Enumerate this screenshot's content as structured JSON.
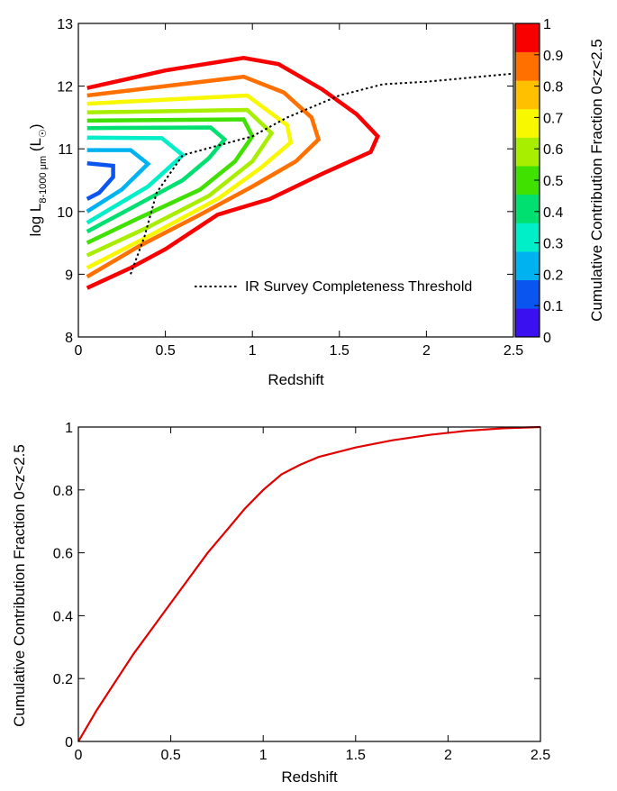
{
  "chart_data": [
    {
      "type": "contour",
      "xlabel": "Redshift",
      "ylabel": {
        "main": "log L",
        "subscript": "8-1000 μm",
        "unit_open": " (L",
        "unit_sub": "☉",
        "unit_close": ")"
      },
      "xlim": [
        0,
        2.5
      ],
      "ylim": [
        8,
        13
      ],
      "xticks": [
        "0",
        "0.5",
        "1",
        "1.5",
        "2",
        "2.5"
      ],
      "yticks": [
        "8",
        "9",
        "10",
        "11",
        "12",
        "13"
      ],
      "colorbar": {
        "label": "Cumulative Contribution Fraction 0<z<2.5",
        "levels": [
          0,
          0.1,
          0.2,
          0.3,
          0.4,
          0.5,
          0.6,
          0.7,
          0.8,
          0.9,
          1
        ],
        "tick_labels": [
          "0",
          "0.1",
          "0.2",
          "0.3",
          "0.4",
          "0.5",
          "0.6",
          "0.7",
          "0.8",
          "0.9",
          "1"
        ],
        "colors": [
          "#3a10f0",
          "#0a55f0",
          "#00b3f0",
          "#00eec8",
          "#00e070",
          "#40e000",
          "#a8ee00",
          "#f8f800",
          "#ffc000",
          "#ff7000",
          "#f80000"
        ]
      },
      "contours": [
        {
          "level": 0.2,
          "color": "#0a55f0",
          "points": [
            [
              0.05,
              10.77
            ],
            [
              0.2,
              10.73
            ],
            [
              0.2,
              10.55
            ],
            [
              0.12,
              10.3
            ],
            [
              0.05,
              10.2
            ]
          ]
        },
        {
          "level": 0.3,
          "color": "#00b3f0",
          "points": [
            [
              0.05,
              10.98
            ],
            [
              0.3,
              10.98
            ],
            [
              0.4,
              10.76
            ],
            [
              0.25,
              10.35
            ],
            [
              0.05,
              10.0
            ]
          ]
        },
        {
          "level": 0.4,
          "color": "#00eec8",
          "points": [
            [
              0.05,
              11.18
            ],
            [
              0.48,
              11.17
            ],
            [
              0.6,
              10.9
            ],
            [
              0.4,
              10.4
            ],
            [
              0.05,
              9.82
            ]
          ]
        },
        {
          "level": 0.5,
          "color": "#00e070",
          "points": [
            [
              0.05,
              11.33
            ],
            [
              0.76,
              11.34
            ],
            [
              0.84,
              11.15
            ],
            [
              0.75,
              10.85
            ],
            [
              0.6,
              10.5
            ],
            [
              0.3,
              10.05
            ],
            [
              0.05,
              9.68
            ]
          ]
        },
        {
          "level": 0.6,
          "color": "#40e000",
          "points": [
            [
              0.05,
              11.45
            ],
            [
              0.95,
              11.47
            ],
            [
              1.0,
              11.2
            ],
            [
              0.9,
              10.8
            ],
            [
              0.7,
              10.35
            ],
            [
              0.35,
              9.9
            ],
            [
              0.05,
              9.5
            ]
          ]
        },
        {
          "level": 0.7,
          "color": "#a8ee00",
          "points": [
            [
              0.05,
              11.58
            ],
            [
              0.97,
              11.62
            ],
            [
              1.11,
              11.25
            ],
            [
              1.0,
              10.8
            ],
            [
              0.75,
              10.25
            ],
            [
              0.4,
              9.75
            ],
            [
              0.05,
              9.3
            ]
          ]
        },
        {
          "level": 0.8,
          "color": "#f8f800",
          "points": [
            [
              0.05,
              11.72
            ],
            [
              0.97,
              11.85
            ],
            [
              1.2,
              11.38
            ],
            [
              1.22,
              11.1
            ],
            [
              1.05,
              10.7
            ],
            [
              0.8,
              10.2
            ],
            [
              0.4,
              9.6
            ],
            [
              0.05,
              9.1
            ]
          ]
        },
        {
          "level": 0.9,
          "color": "#ff7000",
          "points": [
            [
              0.05,
              11.85
            ],
            [
              0.5,
              12.0
            ],
            [
              0.95,
              12.15
            ],
            [
              1.18,
              11.9
            ],
            [
              1.34,
              11.5
            ],
            [
              1.38,
              11.15
            ],
            [
              1.25,
              10.8
            ],
            [
              1.0,
              10.4
            ],
            [
              0.7,
              9.95
            ],
            [
              0.35,
              9.45
            ],
            [
              0.05,
              8.96
            ]
          ]
        },
        {
          "level": 1.0,
          "color": "#f80000",
          "points": [
            [
              0.05,
              11.97
            ],
            [
              0.5,
              12.25
            ],
            [
              0.95,
              12.45
            ],
            [
              1.15,
              12.35
            ],
            [
              1.4,
              11.95
            ],
            [
              1.6,
              11.55
            ],
            [
              1.72,
              11.2
            ],
            [
              1.68,
              10.95
            ],
            [
              1.4,
              10.6
            ],
            [
              1.1,
              10.2
            ],
            [
              0.8,
              9.95
            ],
            [
              0.5,
              9.4
            ],
            [
              0.3,
              9.1
            ],
            [
              0.05,
              8.78
            ]
          ]
        }
      ],
      "threshold_line": {
        "label": "IR Survey Completeness Threshold",
        "points": [
          [
            0.3,
            9.0
          ],
          [
            0.38,
            9.6
          ],
          [
            0.45,
            10.3
          ],
          [
            0.6,
            10.9
          ],
          [
            0.8,
            11.05
          ],
          [
            1.0,
            11.2
          ],
          [
            1.2,
            11.5
          ],
          [
            1.5,
            11.85
          ],
          [
            1.75,
            12.03
          ],
          [
            2.0,
            12.07
          ],
          [
            2.5,
            12.2
          ]
        ]
      }
    },
    {
      "type": "line",
      "xlabel": "Redshift",
      "ylabel": "Cumulative Contribution Fraction 0<z<2.5",
      "xlim": [
        0,
        2.5
      ],
      "ylim": [
        0,
        1
      ],
      "xticks": [
        "0",
        "0.5",
        "1",
        "1.5",
        "2",
        "2.5"
      ],
      "yticks": [
        "0",
        "0.2",
        "0.4",
        "0.6",
        "0.8",
        "1"
      ],
      "series": [
        {
          "color": "#e00000",
          "x": [
            0,
            0.1,
            0.2,
            0.3,
            0.4,
            0.5,
            0.6,
            0.7,
            0.8,
            0.9,
            1.0,
            1.1,
            1.2,
            1.3,
            1.5,
            1.7,
            1.9,
            2.1,
            2.3,
            2.5
          ],
          "y": [
            0,
            0.1,
            0.19,
            0.28,
            0.36,
            0.44,
            0.52,
            0.6,
            0.67,
            0.74,
            0.8,
            0.85,
            0.88,
            0.905,
            0.935,
            0.958,
            0.975,
            0.988,
            0.996,
            1.0
          ]
        }
      ]
    }
  ]
}
